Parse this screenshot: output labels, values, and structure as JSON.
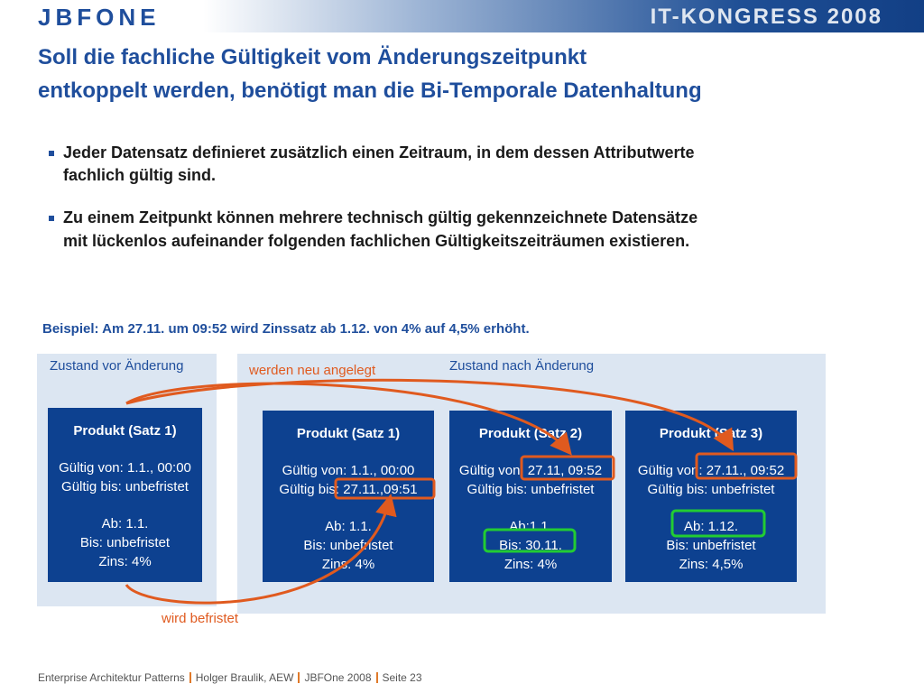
{
  "header": {
    "logo": "JBFONE",
    "event": "IT-KONGRESS 2008"
  },
  "title": [
    "Soll die fachliche Gültigkeit vom Änderungszeitpunkt",
    "entkoppelt werden, benötigt man die Bi-Temporale Datenhaltung"
  ],
  "bullets": [
    [
      "Jeder Datensatz definieret zusätzlich einen Zeitraum, in dem dessen Attributwerte",
      "fachlich gültig sind."
    ],
    [
      "Zu einem Zeitpunkt können mehrere technisch gültig gekennzeichnete Datensätze",
      "mit lückenlos aufeinander folgenden fachlichen Gültigkeitszeiträumen existieren."
    ]
  ],
  "example": "Beispiel: Am 27.11. um 09:52 wird Zinssatz ab 1.12. von 4% auf 4,5% erhöht.",
  "panels": {
    "before": "Zustand vor Änderung",
    "after": "Zustand nach Änderung"
  },
  "annotations": {
    "new": "werden neu angelegt",
    "limited": "wird befristet"
  },
  "boxes": [
    {
      "title": "Produkt (Satz 1)",
      "validity": [
        "Gültig von: 1.1., 00:00",
        "Gültig bis: unbefristet"
      ],
      "details": [
        "Ab: 1.1.",
        "Bis: unbefristet",
        "Zins: 4%"
      ]
    },
    {
      "title": "Produkt (Satz 1)",
      "validity": [
        "Gültig von: 1.1., 00:00",
        "Gültig bis: 27.11.,09:51"
      ],
      "details": [
        "Ab: 1.1.",
        "Bis: unbefristet",
        "Zins: 4%"
      ]
    },
    {
      "title": "Produkt (Satz 2)",
      "validity": [
        "Gültig von: 27.11, 09:52",
        "Gültig bis: unbefristet"
      ],
      "details": [
        "Ab:1.1.",
        "Bis: 30.11.",
        "Zins: 4%"
      ]
    },
    {
      "title": "Produkt (Satz 3)",
      "validity": [
        "Gültig von: 27.11., 09:52",
        "Gültig bis: unbefristet"
      ],
      "details": [
        "Ab: 1.12.",
        "Bis: unbefristet",
        "Zins: 4,5%"
      ]
    }
  ],
  "footer": [
    "Enterprise Architektur Patterns",
    "Holger Braulik, AEW",
    "JBFOne 2008",
    "Seite 23"
  ]
}
